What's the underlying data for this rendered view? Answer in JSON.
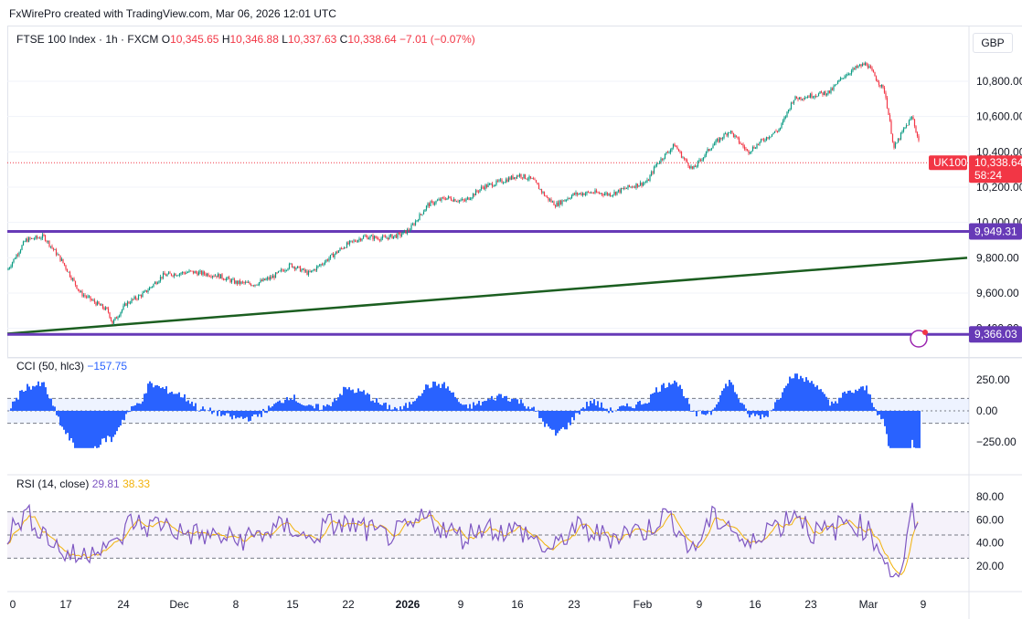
{
  "credit": "FxWirePro created with TradingView.com, Mar 06, 2026 12:01 UTC",
  "currency": "GBP",
  "legend_main": {
    "symbol": "FTSE 100 Index · 1h · FXCM",
    "o_label": "O",
    "o_val": "10,345.65",
    "h_label": "H",
    "h_val": "10,346.88",
    "l_label": "L",
    "l_val": "10,337.63",
    "c_label": "C",
    "c_val": "10,338.64",
    "change": "−7.01 (−0.07%)"
  },
  "legend_cci": {
    "label": "CCI (50, hlc3)",
    "value": "−157.75"
  },
  "legend_rsi": {
    "label": "RSI (14, close)",
    "value": "29.81",
    "ma_value": "38.33"
  },
  "badges": {
    "symbol_tag": "UK100",
    "last_price": "10,338.64",
    "countdown": "58:24",
    "level_high": "9,949.31",
    "level_low": "9,366.03"
  },
  "colors": {
    "up": "#089981",
    "down": "#f23645",
    "level": "#673ab7",
    "trend": "#1b5e20",
    "cci": "#2962ff",
    "rsi": "#7e57c2",
    "rsi_ma": "#f2b20a"
  },
  "chart_data": [
    {
      "type": "candlestick",
      "title": "FTSE 100 Index · 1h · FXCM",
      "x_tick_labels": [
        "0",
        "17",
        "24",
        "Dec",
        "8",
        "15",
        "22",
        "2026",
        "9",
        "16",
        "23",
        "Feb",
        "9",
        "16",
        "23",
        "Mar",
        "9"
      ],
      "y_tick_labels": [
        "9,400.00",
        "9,600.00",
        "9,800.00",
        "10,000.00",
        "10,200.00",
        "10,400.00",
        "10,600.00",
        "10,800.00"
      ],
      "ylim": [
        9350,
        10950
      ],
      "ohlc_last": {
        "open": 10345.65,
        "high": 10346.88,
        "low": 10337.63,
        "close": 10338.64
      },
      "close_path": [
        [
          0,
          9730
        ],
        [
          20,
          9900
        ],
        [
          40,
          9920
        ],
        [
          60,
          9780
        ],
        [
          80,
          9600
        ],
        [
          95,
          9550
        ],
        [
          110,
          9500
        ],
        [
          115,
          9430
        ],
        [
          130,
          9540
        ],
        [
          150,
          9600
        ],
        [
          170,
          9700
        ],
        [
          200,
          9720
        ],
        [
          230,
          9700
        ],
        [
          250,
          9660
        ],
        [
          270,
          9650
        ],
        [
          290,
          9690
        ],
        [
          310,
          9760
        ],
        [
          330,
          9710
        ],
        [
          350,
          9790
        ],
        [
          370,
          9870
        ],
        [
          390,
          9920
        ],
        [
          410,
          9910
        ],
        [
          430,
          9930
        ],
        [
          440,
          9960
        ],
        [
          460,
          10100
        ],
        [
          480,
          10140
        ],
        [
          500,
          10120
        ],
        [
          520,
          10200
        ],
        [
          545,
          10240
        ],
        [
          560,
          10270
        ],
        [
          575,
          10240
        ],
        [
          590,
          10140
        ],
        [
          600,
          10100
        ],
        [
          620,
          10160
        ],
        [
          640,
          10170
        ],
        [
          660,
          10160
        ],
        [
          680,
          10200
        ],
        [
          700,
          10230
        ],
        [
          710,
          10330
        ],
        [
          730,
          10440
        ],
        [
          740,
          10360
        ],
        [
          750,
          10300
        ],
        [
          770,
          10430
        ],
        [
          790,
          10520
        ],
        [
          810,
          10400
        ],
        [
          830,
          10480
        ],
        [
          845,
          10530
        ],
        [
          860,
          10700
        ],
        [
          880,
          10720
        ],
        [
          900,
          10740
        ],
        [
          915,
          10830
        ],
        [
          930,
          10880
        ],
        [
          940,
          10900
        ],
        [
          950,
          10820
        ],
        [
          960,
          10740
        ],
        [
          970,
          10420
        ],
        [
          980,
          10520
        ],
        [
          990,
          10600
        ],
        [
          998,
          10440
        ],
        [
          1005,
          10338.64
        ]
      ],
      "horizontal_levels": [
        9949.31,
        9366.03
      ],
      "trendline": {
        "from": [
          0,
          9370
        ],
        "to": [
          1050,
          9800
        ]
      },
      "last_price": 10338.64
    },
    {
      "type": "line",
      "title": "CCI (50, hlc3)",
      "y_tick_labels": [
        "250.00",
        "0.00",
        "−250.00"
      ],
      "ylim": [
        -350,
        350
      ],
      "bands": [
        100,
        -100
      ],
      "last_value": -157.75
    },
    {
      "type": "line",
      "title": "RSI (14, close)",
      "y_tick_labels": [
        "80.00",
        "60.00",
        "40.00",
        "20.00"
      ],
      "ylim": [
        10,
        90
      ],
      "bands": [
        70,
        50,
        30
      ],
      "last_value": 29.81,
      "ma_last_value": 38.33
    }
  ]
}
